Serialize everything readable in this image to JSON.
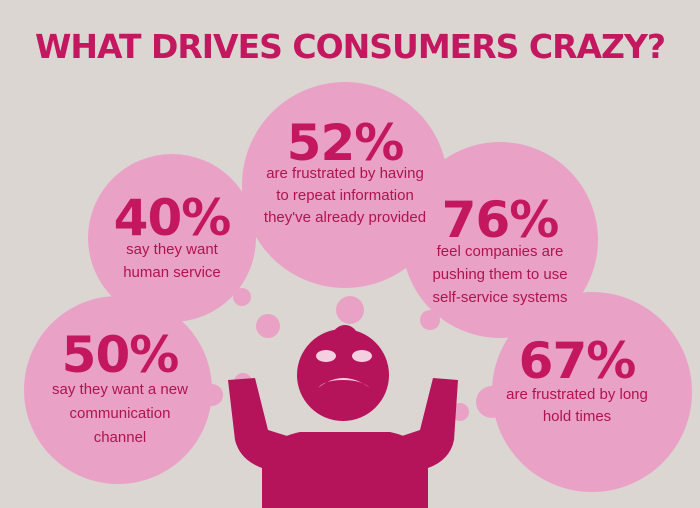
{
  "title": "WHAT DRIVES CONSUMERS CRAZY?",
  "bubbles": [
    {
      "stat": "52%",
      "lines": [
        "are frustrated by having",
        "to repeat information",
        "they've already provided"
      ]
    },
    {
      "stat": "40%",
      "lines": [
        "say they want",
        "human service"
      ]
    },
    {
      "stat": "76%",
      "lines": [
        "feel companies are",
        "pushing them to use",
        "self-service systems"
      ]
    },
    {
      "stat": "50%",
      "lines": [
        "say they want a new",
        "communication",
        "channel"
      ]
    },
    {
      "stat": "67%",
      "lines": [
        "are frustrated by long",
        "hold times"
      ]
    }
  ]
}
